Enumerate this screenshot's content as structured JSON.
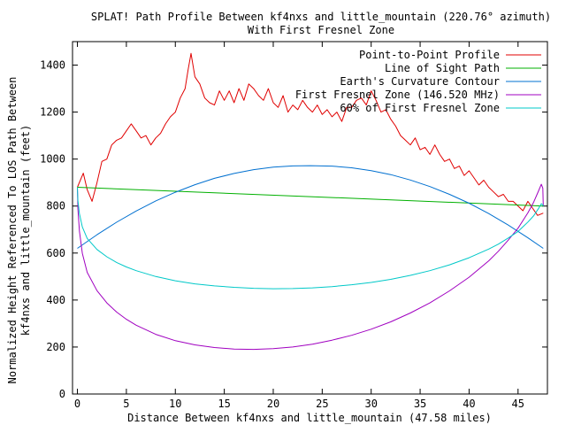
{
  "chart_data": {
    "type": "line",
    "title_line1": "SPLAT! Path Profile Between kf4nxs and little_mountain (220.76° azimuth)",
    "title_line2": "With First Fresnel Zone",
    "xlabel": "Distance Between kf4nxs and little_mountain (47.58 miles)",
    "ylabel_line1": "Normalized Height Referenced To LOS Path Between",
    "ylabel_line2": "kf4nxs and little_mountain (feet)",
    "xlim": [
      -0.5,
      48
    ],
    "ylim": [
      0,
      1500
    ],
    "xticks": [
      0,
      5,
      10,
      15,
      20,
      25,
      30,
      35,
      40,
      45
    ],
    "yticks": [
      0,
      200,
      400,
      600,
      800,
      1000,
      1200,
      1400
    ],
    "grid": false,
    "legend_position": "top-right",
    "series": [
      {
        "name": "Point-to-Point Profile",
        "color": "#e00000",
        "x": [
          0,
          0.6,
          1.0,
          1.5,
          2.0,
          2.5,
          3.0,
          3.5,
          4.0,
          4.5,
          5.0,
          5.5,
          6.0,
          6.5,
          7.0,
          7.5,
          8.0,
          8.5,
          9.0,
          9.5,
          10.0,
          10.5,
          11.0,
          11.3,
          11.6,
          12.0,
          12.5,
          13.0,
          13.5,
          14.0,
          14.5,
          15.0,
          15.5,
          16.0,
          16.5,
          17.0,
          17.5,
          18.0,
          18.5,
          19.0,
          19.5,
          20.0,
          20.5,
          21.0,
          21.5,
          22.0,
          22.5,
          23.0,
          23.5,
          24.0,
          24.5,
          25.0,
          25.5,
          26.0,
          26.5,
          27.0,
          27.5,
          28.0,
          28.5,
          29.0,
          29.5,
          30.0,
          30.5,
          31.0,
          31.5,
          32.0,
          32.5,
          33.0,
          33.5,
          34.0,
          34.5,
          35.0,
          35.5,
          36.0,
          36.5,
          37.0,
          37.5,
          38.0,
          38.5,
          39.0,
          39.5,
          40.0,
          40.5,
          41.0,
          41.5,
          42.0,
          42.5,
          43.0,
          43.5,
          44.0,
          44.5,
          45.0,
          45.5,
          46.0,
          46.5,
          47.0,
          47.58
        ],
        "y": [
          880,
          940,
          870,
          820,
          900,
          990,
          1000,
          1060,
          1080,
          1090,
          1120,
          1150,
          1120,
          1090,
          1100,
          1060,
          1090,
          1110,
          1150,
          1180,
          1200,
          1260,
          1300,
          1380,
          1450,
          1350,
          1320,
          1260,
          1240,
          1230,
          1290,
          1250,
          1290,
          1240,
          1300,
          1250,
          1320,
          1300,
          1270,
          1250,
          1300,
          1240,
          1220,
          1270,
          1200,
          1230,
          1210,
          1250,
          1220,
          1200,
          1230,
          1190,
          1210,
          1180,
          1200,
          1160,
          1220,
          1220,
          1250,
          1260,
          1230,
          1290,
          1250,
          1200,
          1210,
          1170,
          1140,
          1100,
          1080,
          1060,
          1090,
          1040,
          1050,
          1020,
          1060,
          1020,
          990,
          1000,
          960,
          970,
          930,
          950,
          920,
          890,
          910,
          880,
          860,
          840,
          850,
          820,
          820,
          800,
          780,
          820,
          790,
          760,
          770
        ]
      },
      {
        "name": "Line of Sight Path",
        "color": "#00b000",
        "x": [
          0,
          47.58
        ],
        "y": [
          880,
          800
        ]
      },
      {
        "name": "Earth's Curvature Contour",
        "color": "#0070d0",
        "x": [
          0,
          2,
          4,
          6,
          8,
          10,
          12,
          14,
          16,
          18,
          20,
          22,
          23.79,
          26,
          28,
          30,
          32,
          34,
          36,
          38,
          40,
          42,
          44,
          46,
          47.58
        ],
        "y": [
          620,
          678,
          731,
          779,
          822,
          859,
          891,
          918,
          939,
          955,
          966,
          971,
          972,
          970,
          963,
          951,
          934,
          911,
          883,
          850,
          812,
          768,
          719,
          665,
          620
        ]
      },
      {
        "name": "First Fresnel Zone (146.520 MHz)",
        "color": "#a000c0",
        "x": [
          0,
          0.05,
          0.2,
          0.5,
          1,
          2,
          3,
          4,
          5,
          6,
          8,
          10,
          12,
          14,
          16,
          18,
          20,
          22,
          24,
          26,
          28,
          30,
          32,
          34,
          36,
          38,
          40,
          42,
          43,
          44,
          45,
          46,
          46.6,
          47.08,
          47.38,
          47.53,
          47.58
        ],
        "y": [
          880,
          787,
          694,
          599,
          518,
          440,
          388,
          349,
          318,
          293,
          254,
          227,
          209,
          198,
          191,
          190,
          193,
          200,
          212,
          229,
          250,
          276,
          307,
          345,
          388,
          439,
          497,
          567,
          608,
          655,
          706,
          771,
          817,
          863,
          893,
          876,
          800
        ]
      },
      {
        "name": "60% of First Fresnel Zone",
        "color": "#00c8c8",
        "x": [
          0,
          0.05,
          0.2,
          0.5,
          1,
          2,
          3,
          4,
          5,
          6,
          8,
          10,
          12,
          14,
          16,
          18,
          20,
          22,
          24,
          26,
          28,
          30,
          32,
          34,
          36,
          38,
          40,
          42,
          43,
          44,
          45,
          46,
          46.6,
          47.08,
          47.38,
          47.53,
          47.58
        ],
        "y": [
          880,
          824,
          768,
          711,
          662,
          615,
          584,
          560,
          541,
          525,
          500,
          482,
          469,
          460,
          454,
          450,
          448,
          449,
          452,
          457,
          465,
          475,
          488,
          505,
          525,
          550,
          580,
          617,
          638,
          664,
          692,
          732,
          759,
          789,
          810,
          805,
          800
        ]
      }
    ]
  }
}
